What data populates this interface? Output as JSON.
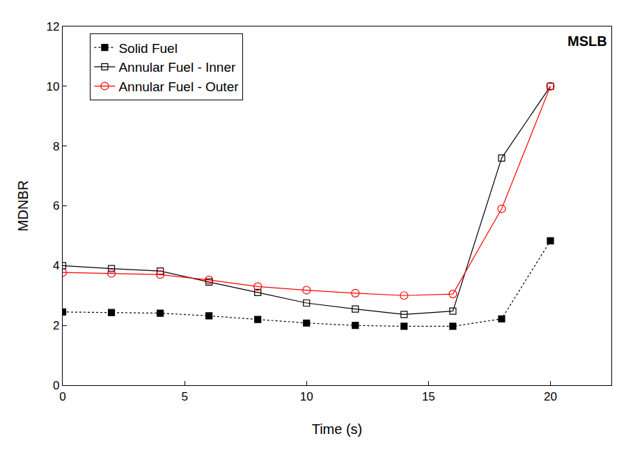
{
  "chart_data": {
    "type": "line",
    "x_label": "Time (s)",
    "y_label": "MDNBR",
    "annotation": "MSLB",
    "x": [
      0,
      2,
      4,
      6,
      8,
      10,
      12,
      14,
      16,
      18,
      20
    ],
    "series": [
      {
        "name": "Solid Fuel",
        "color": "#000000",
        "marker": "square",
        "line_style": "dot",
        "values": [
          2.45,
          2.43,
          2.41,
          2.32,
          2.2,
          2.08,
          2.0,
          1.97,
          1.97,
          2.22,
          4.83
        ]
      },
      {
        "name": "Annular Fuel - Inner",
        "color": "#000000",
        "marker": "square-open",
        "line_style": "solid",
        "values": [
          4.0,
          3.9,
          3.82,
          3.45,
          3.1,
          2.75,
          2.55,
          2.37,
          2.48,
          7.6,
          10.0
        ]
      },
      {
        "name": "Annular Fuel - Outer",
        "color": "#ff0000",
        "marker": "circle-open",
        "line_style": "solid",
        "values": [
          3.77,
          3.74,
          3.7,
          3.52,
          3.3,
          3.18,
          3.08,
          3.0,
          3.05,
          5.9,
          10.0
        ]
      }
    ],
    "xlim": [
      0,
      22.5
    ],
    "xticks": [
      0,
      5,
      10,
      15,
      20
    ],
    "ylim": [
      0,
      12
    ],
    "yticks": [
      0,
      2,
      4,
      6,
      8,
      10,
      12
    ],
    "grid": false,
    "legend": "top left"
  }
}
